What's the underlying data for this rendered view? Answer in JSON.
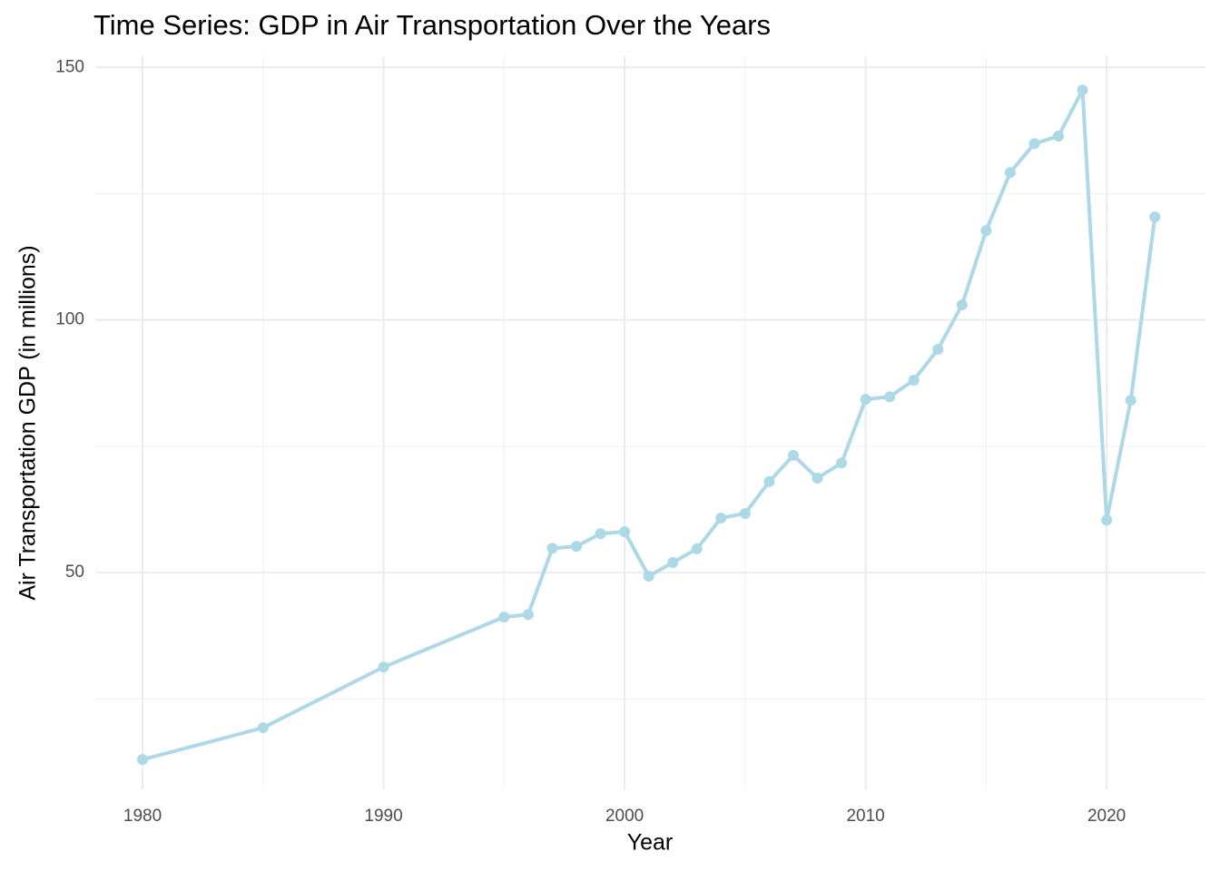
{
  "chart_data": {
    "type": "line",
    "title": "Time Series: GDP in Air Transportation Over the Years",
    "x_label": "Year",
    "y_label": "Air Transportation GDP (in millions)",
    "x": [
      1980,
      1985,
      1990,
      1995,
      1996,
      1997,
      1998,
      1999,
      2000,
      2001,
      2002,
      2003,
      2004,
      2005,
      2006,
      2007,
      2008,
      2009,
      2010,
      2011,
      2012,
      2013,
      2014,
      2015,
      2016,
      2017,
      2018,
      2019,
      2020,
      2021,
      2022
    ],
    "series": [
      {
        "name": "GDP",
        "color": "#add8e6",
        "values": [
          13.0,
          19.3,
          31.3,
          41.2,
          41.7,
          54.8,
          55.2,
          57.7,
          58.1,
          49.3,
          52.0,
          54.7,
          60.8,
          61.7,
          68.0,
          73.2,
          68.7,
          71.7,
          84.3,
          84.8,
          88.1,
          94.2,
          103.0,
          117.7,
          129.2,
          134.9,
          136.4,
          145.5,
          60.4,
          84.1,
          120.4
        ]
      }
    ],
    "xlim": [
      1978.04,
      2024.1
    ],
    "ylim": [
      7.1,
      152.2
    ],
    "xticks": [
      1980,
      1990,
      2000,
      2010,
      2020
    ],
    "yticks": [
      50,
      100,
      150
    ],
    "x_minor_ticks": [
      1985,
      1995,
      2005,
      2015
    ],
    "y_minor_ticks": [
      25,
      75,
      125
    ],
    "grid": true
  }
}
